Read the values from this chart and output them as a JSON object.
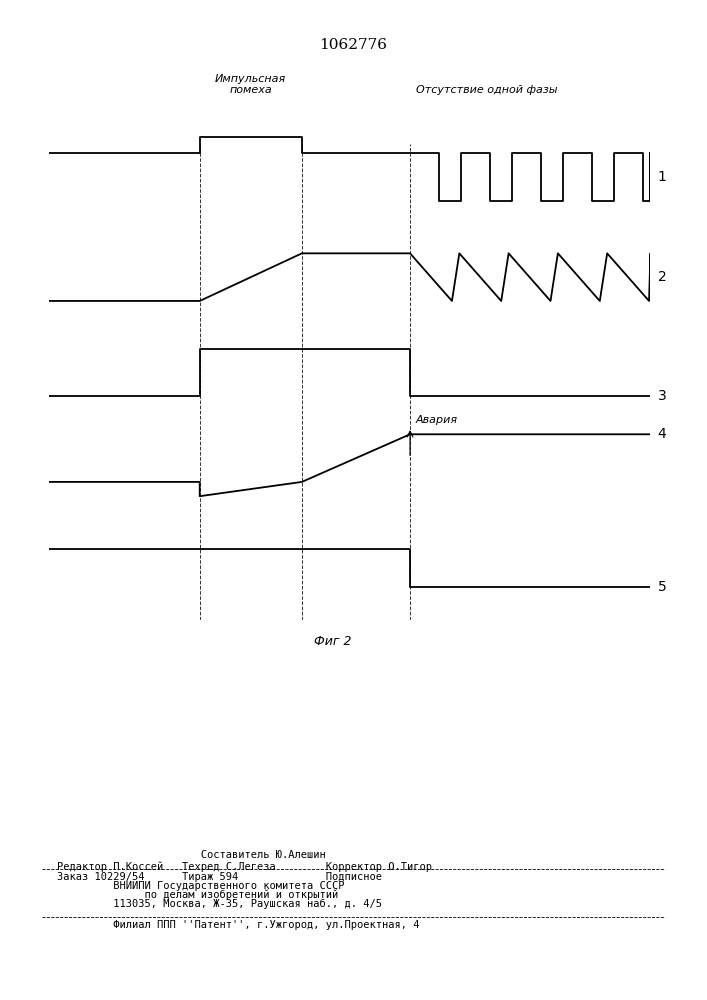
{
  "title": "1062776",
  "fig2_label": "Фиг 2",
  "impulse_label": "Импульсная\nпомеха",
  "absence_label": "Отсутствие одной фазы",
  "avaria_label": "Авария",
  "signal_labels": [
    "1",
    "2",
    "3",
    "4",
    "5"
  ],
  "background_color": "#ffffff",
  "line_color": "#000000",
  "t0": 0.0,
  "t1": 0.25,
  "t2": 0.42,
  "t3": 0.6,
  "t4": 1.0,
  "footer_lines": [
    [
      "                       Составитель Ю.Алешин",
      0.1495
    ],
    [
      "Редактор П.Коссей   Техред С.Легеза       Корректор О.Тигор",
      0.1385
    ],
    [
      "Заказ 10229/54     Тираж 594              Подписное",
      0.1195
    ],
    [
      "      ВНИИПИ Государственного комитета СССР",
      0.1095
    ],
    [
      "           по делам изобретений и открытий",
      0.1005
    ],
    [
      "      113035, Москва, Ж-35, Раушская наб., д. 4/5",
      0.0915
    ],
    [
      "      Филиал ППП ''Pатент'', г.Ужгород, ул.Проектная, 4",
      0.0725
    ]
  ]
}
